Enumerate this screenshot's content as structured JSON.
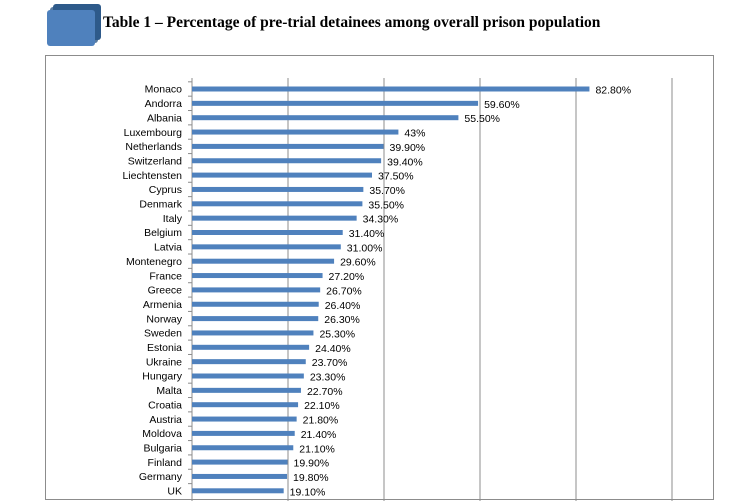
{
  "heading": "Table 1 – Percentage of pre-trial detainees among overall prison population",
  "colors": {
    "bar": "#4f81bd",
    "icon_front": "#4f81bd",
    "icon_back": "#2e5a8a",
    "gridline": "#8c8c8c"
  },
  "chart_data": {
    "type": "bar",
    "orientation": "horizontal",
    "title": "",
    "xlabel": "",
    "ylabel": "",
    "xlim": [
      0,
      100
    ],
    "grid": true,
    "legend": "none",
    "categories": [
      "Monaco",
      "Andorra",
      "Albania",
      "Luxembourg",
      "Netherlands",
      "Switzerland",
      "Liechtensten",
      "Cyprus",
      "Denmark",
      "Italy",
      "Belgium",
      "Latvia",
      "Montenegro",
      "France",
      "Greece",
      "Armenia",
      "Norway",
      "Sweden",
      "Estonia",
      "Ukraine",
      "Hungary",
      "Malta",
      "Croatia",
      "Austria",
      "Moldova",
      "Bulgaria",
      "Finland",
      "Germany",
      "UK"
    ],
    "values": [
      82.8,
      59.6,
      55.5,
      43,
      39.9,
      39.4,
      37.5,
      35.7,
      35.5,
      34.3,
      31.4,
      31.0,
      29.6,
      27.2,
      26.7,
      26.4,
      26.3,
      25.3,
      24.4,
      23.7,
      23.3,
      22.7,
      22.1,
      21.8,
      21.4,
      21.1,
      19.9,
      19.8,
      19.1
    ],
    "data_labels": [
      "82.80%",
      "59.60%",
      "55.50%",
      "43%",
      "39.90%",
      "39.40%",
      "37.50%",
      "35.70%",
      "35.50%",
      "34.30%",
      "31.40%",
      "31.00%",
      "29.60%",
      "27.20%",
      "26.70%",
      "26.40%",
      "26.30%",
      "25.30%",
      "24.40%",
      "23.70%",
      "23.30%",
      "22.70%",
      "22.10%",
      "21.80%",
      "21.40%",
      "21.10%",
      "19.90%",
      "19.80%",
      "19.10%"
    ]
  }
}
